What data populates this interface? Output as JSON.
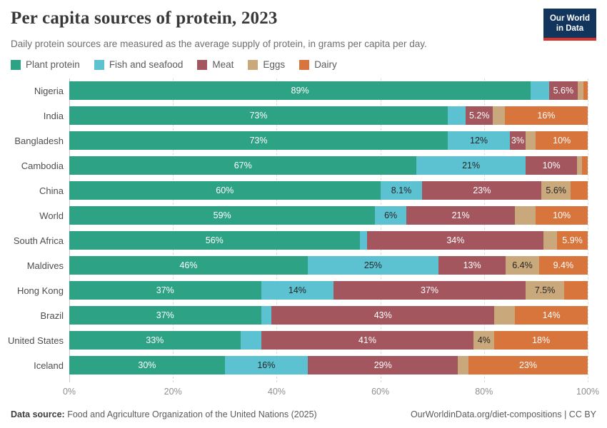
{
  "header": {
    "title": "Per capita sources of protein, 2023",
    "subtitle": "Daily protein sources are measured as the average supply of protein, in grams per capita per day.",
    "logo_line1": "Our World",
    "logo_line2": "in Data",
    "logo_bg": "#12355E",
    "logo_accent": "#D7332C"
  },
  "chart_data": {
    "type": "bar",
    "stacked": true,
    "orientation": "horizontal",
    "unit": "%",
    "xlim": [
      0,
      100
    ],
    "grid": "dashed-vertical",
    "x_ticks": [
      "0%",
      "20%",
      "40%",
      "60%",
      "80%",
      "100%"
    ],
    "x_tick_values": [
      0,
      20,
      40,
      60,
      80,
      100
    ],
    "series": [
      {
        "name": "Plant protein",
        "color": "#2EA285",
        "label_text_color": "#ffffff"
      },
      {
        "name": "Fish and seafood",
        "color": "#5CC2D2",
        "label_text_color": "#262626"
      },
      {
        "name": "Meat",
        "color": "#A4565F",
        "label_text_color": "#ffffff"
      },
      {
        "name": "Eggs",
        "color": "#C9A87C",
        "label_text_color": "#262626"
      },
      {
        "name": "Dairy",
        "color": "#D8753C",
        "label_text_color": "#ffffff"
      }
    ],
    "categories": [
      "Nigeria",
      "India",
      "Bangladesh",
      "Cambodia",
      "China",
      "World",
      "South Africa",
      "Maldives",
      "Hong Kong",
      "Brazil",
      "United States",
      "Iceland"
    ],
    "rows": [
      {
        "country": "Nigeria",
        "values": [
          89,
          3.5,
          5.6,
          1.1,
          0.8
        ],
        "labels": [
          "89%",
          null,
          "5.6%",
          null,
          null
        ]
      },
      {
        "country": "India",
        "values": [
          73,
          3.5,
          5.2,
          2.3,
          16
        ],
        "labels": [
          "73%",
          null,
          "5.2%",
          null,
          "16%"
        ]
      },
      {
        "country": "Bangladesh",
        "values": [
          73,
          12,
          3,
          2,
          10
        ],
        "labels": [
          "73%",
          "12%",
          "3%",
          null,
          "10%"
        ]
      },
      {
        "country": "Cambodia",
        "values": [
          67,
          21,
          10,
          0.9,
          1.1
        ],
        "labels": [
          "67%",
          "21%",
          "10%",
          null,
          null
        ]
      },
      {
        "country": "China",
        "values": [
          60,
          8.1,
          23,
          5.6,
          3.3
        ],
        "labels": [
          "60%",
          "8.1%",
          "23%",
          "5.6%",
          null
        ]
      },
      {
        "country": "World",
        "values": [
          59,
          6,
          21,
          4,
          10
        ],
        "labels": [
          "59%",
          "6%",
          "21%",
          null,
          "10%"
        ]
      },
      {
        "country": "South Africa",
        "values": [
          56,
          1.5,
          34,
          2.6,
          5.9
        ],
        "labels": [
          "56%",
          null,
          "34%",
          null,
          "5.9%"
        ]
      },
      {
        "country": "Maldives",
        "values": [
          46,
          25.2,
          13,
          6.4,
          9.4
        ],
        "labels": [
          "46%",
          "25%",
          "13%",
          "6.4%",
          "9.4%"
        ]
      },
      {
        "country": "Hong Kong",
        "values": [
          37,
          14,
          37,
          7.5,
          4.5
        ],
        "labels": [
          "37%",
          "14%",
          "37%",
          "7.5%",
          null
        ]
      },
      {
        "country": "Brazil",
        "values": [
          37,
          2,
          43,
          4,
          14
        ],
        "labels": [
          "37%",
          null,
          "43%",
          null,
          "14%"
        ]
      },
      {
        "country": "United States",
        "values": [
          33,
          4,
          41,
          4,
          18
        ],
        "labels": [
          "33%",
          null,
          "41%",
          "4%",
          "18%"
        ]
      },
      {
        "country": "Iceland",
        "values": [
          30,
          16,
          29,
          2,
          23
        ],
        "labels": [
          "30%",
          "16%",
          "29%",
          null,
          "23%"
        ]
      }
    ]
  },
  "footer": {
    "source_label": "Data source:",
    "source_text": " Food and Agriculture Organization of the United Nations (2025)",
    "credit": "OurWorldinData.org/diet-compositions | CC BY"
  }
}
